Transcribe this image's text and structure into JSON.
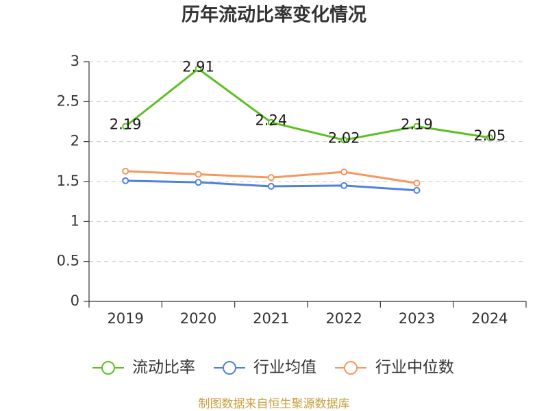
{
  "chart_data": {
    "type": "line",
    "title": "历年流动比率变化情况",
    "categories": [
      "2019",
      "2020",
      "2021",
      "2022",
      "2023",
      "2024"
    ],
    "ylim": [
      0,
      3
    ],
    "yticks": [
      0,
      0.5,
      1,
      1.5,
      2,
      2.5,
      3
    ],
    "grid": true,
    "legend_position": "bottom",
    "series": [
      {
        "name": "流动比率",
        "color": "#5bc01f",
        "values": [
          2.19,
          2.91,
          2.24,
          2.02,
          2.19,
          2.05
        ],
        "show_labels": true
      },
      {
        "name": "行业均值",
        "color": "#4e80e0",
        "values": [
          1.51,
          1.49,
          1.44,
          1.45,
          1.39,
          null
        ],
        "show_labels": false
      },
      {
        "name": "行业中位数",
        "color": "#f7965f",
        "values": [
          1.63,
          1.59,
          1.55,
          1.62,
          1.48,
          null
        ],
        "show_labels": false
      }
    ]
  },
  "source_note": "制图数据来自恒生聚源数据库"
}
